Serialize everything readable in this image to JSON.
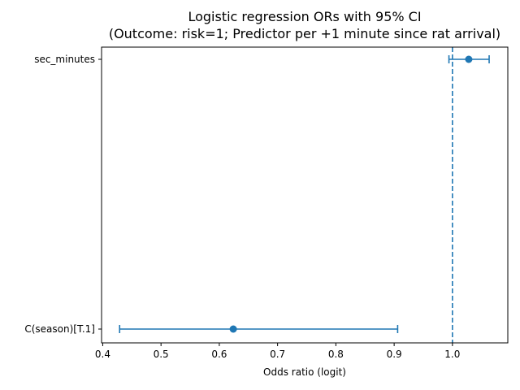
{
  "chart_data": {
    "type": "scatter",
    "title_line1": "Logistic regression ORs with 95% CI",
    "title_line2": "(Outcome: risk=1; Predictor per +1 minute since rat arrival)",
    "xlabel": "Odds ratio (logit)",
    "ylabel": "",
    "xlim": [
      0.398,
      1.095
    ],
    "x_ticks": [
      0.4,
      0.5,
      0.6,
      0.7,
      0.8,
      0.9,
      1.0
    ],
    "x_tick_labels": [
      "0.4",
      "0.5",
      "0.6",
      "0.7",
      "0.8",
      "0.9",
      "1.0"
    ],
    "categories": [
      "sec_minutes",
      "C(season)[T.1]"
    ],
    "series": [
      {
        "points": [
          {
            "label": "sec_minutes",
            "or": 1.028,
            "ci_low": 0.994,
            "ci_high": 1.063
          },
          {
            "label": "C(season)[T.1]",
            "or": 0.624,
            "ci_low": 0.429,
            "ci_high": 0.906
          }
        ]
      }
    ],
    "reference_line": {
      "x": 1.0,
      "style": "dashed"
    },
    "grid": false,
    "legend": "none",
    "colors": {
      "series": "#1f77b4",
      "axes": "#000000"
    }
  }
}
